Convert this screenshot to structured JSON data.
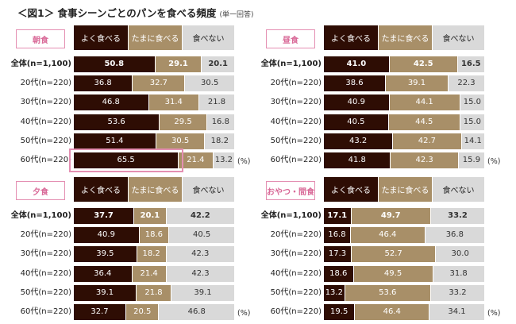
{
  "title": "＜図1＞ 食事シーンごとのパンを食べる頻度",
  "subtitle": "(単一回答)",
  "legend": [
    "よく食べる",
    "たまに食べる",
    "食べない"
  ],
  "colors": {
    "often": "#2e0d04",
    "sometimes": "#a88f68",
    "never": "#d9d9d9",
    "highlight": "#e48fb2"
  },
  "unit": "(%)",
  "chart_data": [
    {
      "type": "bar",
      "stacked": "horizontal-100%",
      "title": "朝食",
      "categories": [
        "全体(n=1,100)",
        "20代(n=220)",
        "30代(n=220)",
        "40代(n=220)",
        "50代(n=220)",
        "60代(n=220)"
      ],
      "series": [
        {
          "name": "よく食べる",
          "values": [
            50.8,
            36.8,
            46.8,
            53.6,
            51.4,
            65.5
          ]
        },
        {
          "name": "たまに食べる",
          "values": [
            29.1,
            32.7,
            31.4,
            29.5,
            30.5,
            21.4
          ]
        },
        {
          "name": "食べない",
          "values": [
            20.1,
            30.5,
            21.8,
            16.8,
            18.2,
            13.2
          ]
        }
      ],
      "highlight": {
        "category": "60代(n=220)",
        "series": "よく食べる"
      },
      "xlim": [
        0,
        100
      ],
      "unit": "(%)"
    },
    {
      "type": "bar",
      "stacked": "horizontal-100%",
      "title": "昼食",
      "categories": [
        "全体(n=1,100)",
        "20代(n=220)",
        "30代(n=220)",
        "40代(n=220)",
        "50代(n=220)",
        "60代(n=220)"
      ],
      "series": [
        {
          "name": "よく食べる",
          "values": [
            41.0,
            38.6,
            40.9,
            40.5,
            43.2,
            41.8
          ]
        },
        {
          "name": "たまに食べる",
          "values": [
            42.5,
            39.1,
            44.1,
            44.5,
            42.7,
            42.3
          ]
        },
        {
          "name": "食べない",
          "values": [
            16.5,
            22.3,
            15.0,
            15.0,
            14.1,
            15.9
          ]
        }
      ],
      "xlim": [
        0,
        100
      ],
      "unit": "(%)"
    },
    {
      "type": "bar",
      "stacked": "horizontal-100%",
      "title": "夕食",
      "categories": [
        "全体(n=1,100)",
        "20代(n=220)",
        "30代(n=220)",
        "40代(n=220)",
        "50代(n=220)",
        "60代(n=220)"
      ],
      "series": [
        {
          "name": "よく食べる",
          "values": [
            37.7,
            40.9,
            39.5,
            36.4,
            39.1,
            32.7
          ]
        },
        {
          "name": "たまに食べる",
          "values": [
            20.1,
            18.6,
            18.2,
            21.4,
            21.8,
            20.5
          ]
        },
        {
          "name": "食べない",
          "values": [
            42.2,
            40.5,
            42.3,
            42.3,
            39.1,
            46.8
          ]
        }
      ],
      "xlim": [
        0,
        100
      ],
      "unit": "(%)"
    },
    {
      "type": "bar",
      "stacked": "horizontal-100%",
      "title": "おやつ・間食",
      "categories": [
        "全体(n=1,100)",
        "20代(n=220)",
        "30代(n=220)",
        "40代(n=220)",
        "50代(n=220)",
        "60代(n=220)"
      ],
      "series": [
        {
          "name": "よく食べる",
          "values": [
            17.1,
            16.8,
            17.3,
            18.6,
            13.2,
            19.5
          ]
        },
        {
          "name": "たまに食べる",
          "values": [
            49.7,
            46.4,
            52.7,
            49.5,
            53.6,
            46.4
          ]
        },
        {
          "name": "食べない",
          "values": [
            33.2,
            36.8,
            30.0,
            31.8,
            33.2,
            34.1
          ]
        }
      ],
      "xlim": [
        0,
        100
      ],
      "unit": "(%)"
    }
  ]
}
